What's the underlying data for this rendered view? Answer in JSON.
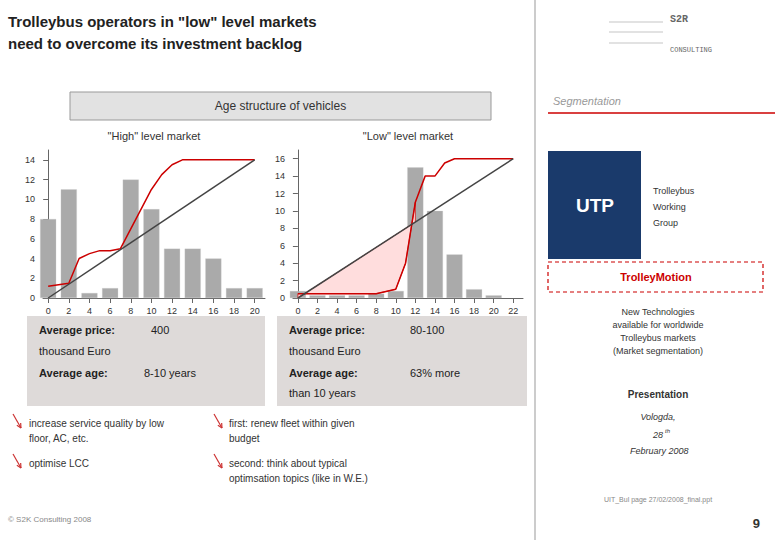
{
  "title": "Trolleybus operators in \"low\" level markets\nneed to overcome its investment backlog",
  "subtitle": "Age structure of vehicles",
  "annotations": [
    "S2R",
    "CONSULTING",
    "Segmentation",
    "UTP",
    "Trolleybus",
    "Working",
    "Group",
    "TrolleyMotion",
    "New Technologies\navailable for worldwide\nTrolleybus markets\n(Market segmentation)",
    "Presentation",
    "Vologda,",
    "28",
    "th",
    " February 2008",
    "UIT_Bul page 27/02/2008_final.ppt",
    "9",
    "Average price:",
    "400",
    "thousand Euro",
    "Average age:",
    "8-10 years",
    "Average price:",
    "80-100",
    "thousand Euro",
    "Average age:",
    "63% more",
    "than 10 years",
    "increase service quality by low",
    "floor, AC, etc.",
    "optimise LCC",
    "first: renew fleet within given",
    "budget",
    "second: think about typical",
    "optimsation topics (like in W.E.)",
    "© S2K Consulting 2008"
  ],
  "chart_data": [
    {
      "type": "bar",
      "title": "\"High\" level market",
      "xlim": [
        -0.5,
        21
      ],
      "ylim": [
        0,
        15
      ],
      "xticks": [
        0,
        2,
        4,
        6,
        8,
        10,
        12,
        14,
        16,
        18,
        20
      ],
      "yticks": [
        0,
        2,
        4,
        6,
        8,
        10,
        12,
        14
      ],
      "grid": false,
      "series": [
        {
          "type": "bar",
          "color": "#aaaaaa",
          "x": [
            0,
            2,
            4,
            6,
            8,
            10,
            12,
            14,
            16,
            18,
            20
          ],
          "values": [
            8,
            11,
            0.5,
            1,
            12,
            9,
            5,
            5,
            4,
            1,
            1
          ]
        },
        {
          "type": "line",
          "color": "#cc0000",
          "x": [
            0,
            2,
            3,
            4,
            5,
            6,
            7,
            8,
            9,
            10,
            11,
            12,
            13,
            14,
            15,
            16,
            18,
            20
          ],
          "values": [
            1.2,
            1.5,
            4,
            4.5,
            4.8,
            4.8,
            5,
            7,
            9,
            11,
            12.5,
            13.5,
            14,
            14,
            14,
            14,
            14,
            14
          ]
        },
        {
          "type": "line",
          "color": "#444444",
          "x": [
            0,
            20
          ],
          "values": [
            0,
            14
          ]
        }
      ]
    },
    {
      "type": "bar",
      "title": "\"Low\" level market",
      "xlim": [
        -0.5,
        23
      ],
      "ylim": [
        0,
        17
      ],
      "xticks": [
        0,
        2,
        4,
        6,
        8,
        10,
        12,
        14,
        16,
        18,
        20,
        22
      ],
      "yticks": [
        0,
        2,
        4,
        6,
        8,
        10,
        12,
        14,
        16
      ],
      "grid": false,
      "series": [
        {
          "type": "bar",
          "color": "#aaaaaa",
          "x": [
            0,
            2,
            4,
            6,
            8,
            10,
            12,
            14,
            16,
            18,
            20
          ],
          "values": [
            0.8,
            0.3,
            0.3,
            0.3,
            0.5,
            0.8,
            15,
            10,
            5,
            1,
            0.3
          ]
        },
        {
          "type": "area",
          "color": "#ffdddd",
          "x": [
            0,
            2,
            4,
            6,
            8,
            10,
            11,
            12
          ],
          "values": [
            0,
            1.4545454545454546,
            2.909090909090909,
            4.363636363636363,
            5.818181818181818,
            7.2727272727272725,
            8,
            8.727272727272727
          ],
          "lower_values": [
            0.5,
            0.5,
            0.5,
            0.5,
            0.5,
            1,
            4,
            11
          ]
        },
        {
          "type": "line",
          "color": "#cc0000",
          "x": [
            0,
            2,
            4,
            6,
            8,
            10,
            11,
            12,
            13,
            14,
            15,
            16,
            18,
            20,
            22
          ],
          "values": [
            0.5,
            0.5,
            0.5,
            0.5,
            0.5,
            1,
            4,
            11,
            14,
            14,
            15.5,
            16,
            16,
            16,
            16
          ]
        },
        {
          "type": "line",
          "color": "#444444",
          "x": [
            0,
            22
          ],
          "values": [
            0,
            16
          ]
        }
      ]
    }
  ]
}
